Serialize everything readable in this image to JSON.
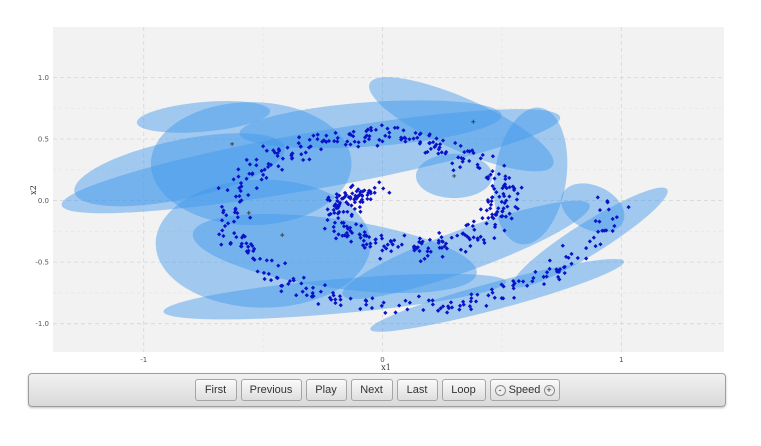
{
  "chart_data": {
    "type": "scatter",
    "title": "",
    "xlabel": "x1",
    "ylabel": "x2",
    "xlim": [
      -1.38,
      1.43
    ],
    "ylim": [
      -1.23,
      1.41
    ],
    "x_ticks": [
      {
        "value": -1,
        "label": "-1"
      },
      {
        "value": 0,
        "label": "0"
      },
      {
        "value": 1,
        "label": "1"
      }
    ],
    "y_ticks": [
      {
        "value": 1.0,
        "label": "1.0"
      },
      {
        "value": 0.5,
        "label": "0.5"
      },
      {
        "value": 0.0,
        "label": "0.0"
      },
      {
        "value": -0.5,
        "label": "-0.5"
      },
      {
        "value": -1.0,
        "label": "-1.0"
      }
    ],
    "grid": true,
    "point_color": "#0a12c8",
    "center_color": "#333333",
    "ellipse_color": "#3d96ec",
    "ellipse_opacity": 0.45,
    "ellipses": [
      {
        "cx": -0.3,
        "cy": 0.32,
        "rx": 1.06,
        "ry": 0.23,
        "angle_deg": 10
      },
      {
        "cx": -0.05,
        "cy": 0.62,
        "rx": 0.55,
        "ry": 0.18,
        "angle_deg": 4
      },
      {
        "cx": -0.55,
        "cy": 0.3,
        "rx": 0.42,
        "ry": 0.5,
        "angle_deg": 0
      },
      {
        "cx": -0.85,
        "cy": 0.25,
        "rx": 0.45,
        "ry": 0.24,
        "angle_deg": 12
      },
      {
        "cx": 0.33,
        "cy": 0.62,
        "rx": 0.42,
        "ry": 0.21,
        "angle_deg": -24
      },
      {
        "cx": 0.3,
        "cy": 0.2,
        "rx": 0.16,
        "ry": 0.18,
        "angle_deg": 0
      },
      {
        "cx": 0.62,
        "cy": 0.2,
        "rx": 0.15,
        "ry": 0.56,
        "angle_deg": -8
      },
      {
        "cx": -0.5,
        "cy": -0.35,
        "rx": 0.45,
        "ry": 0.52,
        "angle_deg": 0
      },
      {
        "cx": -0.2,
        "cy": -0.43,
        "rx": 0.6,
        "ry": 0.28,
        "angle_deg": -8
      },
      {
        "cx": 0.35,
        "cy": -0.4,
        "rx": 0.55,
        "ry": 0.17,
        "angle_deg": 20
      },
      {
        "cx": 0.48,
        "cy": -0.77,
        "rx": 0.55,
        "ry": 0.11,
        "angle_deg": 15
      },
      {
        "cx": 0.87,
        "cy": -0.3,
        "rx": 0.38,
        "ry": 0.13,
        "angle_deg": 32
      },
      {
        "cx": 0.88,
        "cy": -0.06,
        "rx": 0.14,
        "ry": 0.18,
        "angle_deg": -25
      },
      {
        "cx": -0.2,
        "cy": -0.78,
        "rx": 0.72,
        "ry": 0.14,
        "angle_deg": 5
      },
      {
        "cx": -0.75,
        "cy": 0.68,
        "rx": 0.28,
        "ry": 0.12,
        "angle_deg": 5
      }
    ],
    "centers": [
      {
        "x": -0.63,
        "y": 0.46
      },
      {
        "x": -0.56,
        "y": -0.1
      },
      {
        "x": -0.42,
        "y": -0.28
      },
      {
        "x": 0.38,
        "y": 0.64
      },
      {
        "x": 0.3,
        "y": 0.2
      }
    ],
    "spiral": {
      "points": 600,
      "seed": 7,
      "theta_start": 2.2,
      "theta_end": 12.6,
      "center": [
        0.05,
        -0.05
      ],
      "scale_x": 0.072,
      "scale_y": 0.072,
      "noise": 0.04
    }
  },
  "controls": {
    "first": "First",
    "previous": "Previous",
    "play": "Play",
    "next": "Next",
    "last": "Last",
    "loop": "Loop",
    "speed_label": "Speed",
    "speed_minus": "-",
    "speed_plus": "+"
  }
}
